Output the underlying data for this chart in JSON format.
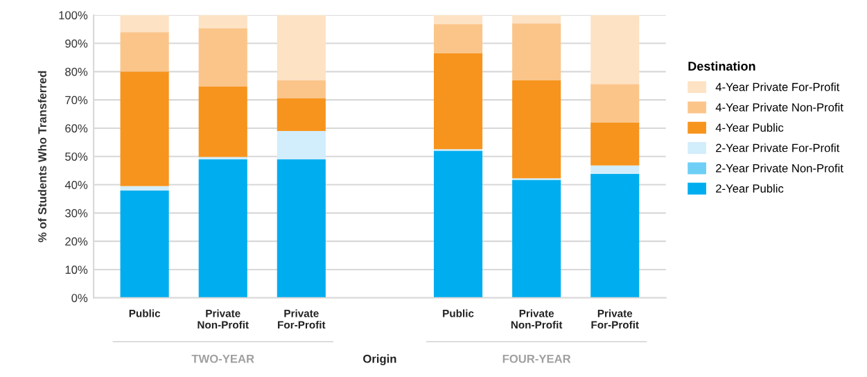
{
  "chart_data": {
    "type": "bar",
    "stacked": true,
    "ylabel": "% of Students Who Transferred",
    "xlabel": "Origin",
    "legend_title": "Destination",
    "legend": "right",
    "grid": "y",
    "categories": [
      "Public",
      "Private\nNon-Profit",
      "Private\nFor-Profit",
      null,
      "Public",
      "Private\nNon-Profit",
      "Private\nFor-Profit"
    ],
    "annotations": [
      "TWO-YEAR",
      "FOUR-YEAR"
    ],
    "ylim": [
      0,
      100
    ],
    "yticks": [
      {
        "value": 0,
        "label": "0%"
      },
      {
        "value": 10,
        "label": "10%"
      },
      {
        "value": 20,
        "label": "20%"
      },
      {
        "value": 30,
        "label": "30%"
      },
      {
        "value": 40,
        "label": "40%"
      },
      {
        "value": 50,
        "label": "50%"
      },
      {
        "value": 60,
        "label": "60%"
      },
      {
        "value": 70,
        "label": "70%"
      },
      {
        "value": 80,
        "label": "80%"
      },
      {
        "value": 90,
        "label": "90%"
      },
      {
        "value": 100,
        "label": "100%"
      }
    ],
    "series": [
      {
        "name": "2-Year Public",
        "color": "#00aeef",
        "values": [
          38,
          49,
          49,
          null,
          52,
          41.7,
          43.8
        ]
      },
      {
        "name": "2-Year Private Non-Profit",
        "color": "#6dcff6",
        "values": [
          0,
          0,
          0,
          null,
          0,
          0,
          0
        ]
      },
      {
        "name": "2-Year Private For-Profit",
        "color": "#d2edfb",
        "values": [
          1.5,
          0.8,
          10,
          null,
          0.6,
          0.6,
          3
        ]
      },
      {
        "name": "4-Year Public",
        "color": "#f7941d",
        "values": [
          40.5,
          24.9,
          11.5,
          null,
          34,
          34.7,
          15.3
        ]
      },
      {
        "name": "4-Year Private Non-Profit",
        "color": "#fbc58a",
        "values": [
          14,
          20.7,
          6.5,
          null,
          10.3,
          20.1,
          13.5
        ]
      },
      {
        "name": "4-Year Private For-Profit",
        "color": "#fde2c4",
        "values": [
          6,
          4.6,
          23,
          null,
          3.1,
          2.9,
          24.4
        ]
      }
    ]
  }
}
